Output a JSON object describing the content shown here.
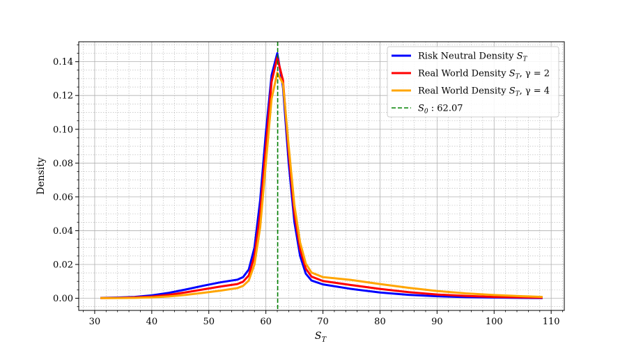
{
  "chart_data": {
    "type": "line",
    "title": "",
    "xlabel": "S_T",
    "ylabel": "Density",
    "xlim": [
      27.2,
      112.3
    ],
    "ylim": [
      -0.0072,
      0.1518
    ],
    "xticks": [
      30,
      40,
      50,
      60,
      70,
      80,
      90,
      100,
      110
    ],
    "yticks": [
      0.0,
      0.02,
      0.04,
      0.06,
      0.08,
      0.1,
      0.12,
      0.14
    ],
    "x_tick_labels": [
      "30",
      "40",
      "50",
      "60",
      "70",
      "80",
      "90",
      "100",
      "110"
    ],
    "y_tick_labels": [
      "0.00",
      "0.02",
      "0.04",
      "0.06",
      "0.08",
      "0.10",
      "0.12",
      "0.14"
    ],
    "grid": "major and minor",
    "legend_position": "top-right",
    "series": [
      {
        "name": "Risk Neutral Density S_T",
        "color": "#0000ff",
        "points": [
          [
            31,
            0.0002
          ],
          [
            34,
            0.0004
          ],
          [
            37,
            0.0008
          ],
          [
            40,
            0.0017
          ],
          [
            43,
            0.0032
          ],
          [
            46,
            0.0052
          ],
          [
            49,
            0.0074
          ],
          [
            52,
            0.0094
          ],
          [
            55,
            0.011
          ],
          [
            56,
            0.0125
          ],
          [
            57,
            0.017
          ],
          [
            58,
            0.03
          ],
          [
            59,
            0.058
          ],
          [
            60,
            0.098
          ],
          [
            61,
            0.132
          ],
          [
            62,
            0.145
          ],
          [
            63,
            0.125
          ],
          [
            64,
            0.08
          ],
          [
            65,
            0.045
          ],
          [
            66,
            0.025
          ],
          [
            67,
            0.0145
          ],
          [
            68,
            0.0105
          ],
          [
            70,
            0.0082
          ],
          [
            75,
            0.0055
          ],
          [
            80,
            0.0034
          ],
          [
            85,
            0.002
          ],
          [
            90,
            0.0012
          ],
          [
            95,
            0.0007
          ],
          [
            100,
            0.0004
          ],
          [
            105,
            0.0002
          ],
          [
            108.5,
            0.0001
          ]
        ]
      },
      {
        "name": "Real World Density S_T, γ = 2",
        "color": "#ff0000",
        "points": [
          [
            31,
            0.0001
          ],
          [
            34,
            0.0002
          ],
          [
            37,
            0.0005
          ],
          [
            40,
            0.001
          ],
          [
            43,
            0.002
          ],
          [
            46,
            0.0035
          ],
          [
            49,
            0.0052
          ],
          [
            52,
            0.0069
          ],
          [
            55,
            0.0084
          ],
          [
            56,
            0.0098
          ],
          [
            57,
            0.0135
          ],
          [
            58,
            0.025
          ],
          [
            59,
            0.05
          ],
          [
            60,
            0.09
          ],
          [
            61,
            0.128
          ],
          [
            62,
            0.1425
          ],
          [
            63,
            0.129
          ],
          [
            64,
            0.086
          ],
          [
            65,
            0.05
          ],
          [
            66,
            0.029
          ],
          [
            67,
            0.0175
          ],
          [
            68,
            0.0128
          ],
          [
            70,
            0.0102
          ],
          [
            75,
            0.0078
          ],
          [
            80,
            0.0055
          ],
          [
            85,
            0.0036
          ],
          [
            90,
            0.0022
          ],
          [
            95,
            0.0014
          ],
          [
            100,
            0.0008
          ],
          [
            105,
            0.0005
          ],
          [
            108.5,
            0.0003
          ]
        ]
      },
      {
        "name": "Real World Density S_T, γ = 4",
        "color": "#ffa500",
        "points": [
          [
            31,
            0.0001
          ],
          [
            34,
            0.0001
          ],
          [
            37,
            0.0002
          ],
          [
            40,
            0.0005
          ],
          [
            43,
            0.0011
          ],
          [
            46,
            0.002
          ],
          [
            49,
            0.0032
          ],
          [
            52,
            0.0045
          ],
          [
            55,
            0.006
          ],
          [
            56,
            0.0073
          ],
          [
            57,
            0.0105
          ],
          [
            58,
            0.02
          ],
          [
            59,
            0.042
          ],
          [
            60,
            0.08
          ],
          [
            61,
            0.118
          ],
          [
            62,
            0.1335
          ],
          [
            63,
            0.127
          ],
          [
            64,
            0.09
          ],
          [
            65,
            0.055
          ],
          [
            66,
            0.033
          ],
          [
            67,
            0.0205
          ],
          [
            68,
            0.0152
          ],
          [
            70,
            0.0125
          ],
          [
            75,
            0.0108
          ],
          [
            80,
            0.0084
          ],
          [
            85,
            0.0062
          ],
          [
            90,
            0.0043
          ],
          [
            95,
            0.0029
          ],
          [
            100,
            0.0019
          ],
          [
            105,
            0.0012
          ],
          [
            108.5,
            0.0008
          ]
        ]
      }
    ],
    "reference_line": {
      "name": "S_0 : 62.07",
      "x": 62.07,
      "color": "#008000",
      "style": "dashed"
    },
    "legend": {
      "entries": [
        {
          "base": "Risk Neutral Density ",
          "math": "S",
          "sub": "T",
          "suffix": "",
          "color": "#0000ff",
          "style": "solid"
        },
        {
          "base": "Real World Density ",
          "math": "S",
          "sub": "T",
          "suffix": ", γ = 2",
          "color": "#ff0000",
          "style": "solid"
        },
        {
          "base": "Real World Density ",
          "math": "S",
          "sub": "T",
          "suffix": ", γ = 4",
          "color": "#ffa500",
          "style": "solid"
        },
        {
          "base": "",
          "math": "S",
          "sub": "0",
          "suffix": " : 62.07",
          "color": "#008000",
          "style": "dashed"
        }
      ]
    }
  }
}
